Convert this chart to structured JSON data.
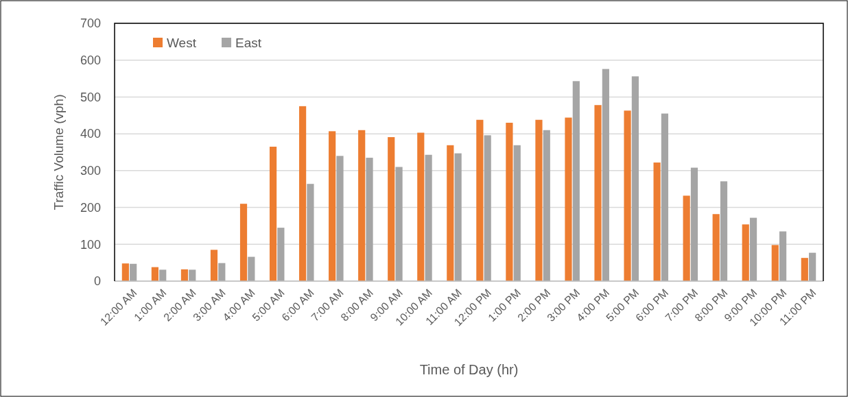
{
  "chart_data": {
    "type": "bar",
    "xlabel": "Time of Day (hr)",
    "ylabel": "Traffic Volume (vph)",
    "categories": [
      "12:00 AM",
      "1:00 AM",
      "2:00 AM",
      "3:00 AM",
      "4:00 AM",
      "5:00 AM",
      "6:00 AM",
      "7:00 AM",
      "8:00 AM",
      "9:00 AM",
      "10:00 AM",
      "11:00 AM",
      "12:00 PM",
      "1:00 PM",
      "2:00 PM",
      "3:00 PM",
      "4:00 PM",
      "5:00 PM",
      "6:00 PM",
      "7:00 PM",
      "8:00 PM",
      "9:00 PM",
      "10:00 PM",
      "11:00 PM"
    ],
    "series": [
      {
        "name": "West",
        "color": "#ed7d31",
        "values": [
          48,
          38,
          32,
          85,
          210,
          365,
          475,
          407,
          410,
          391,
          403,
          369,
          438,
          430,
          438,
          444,
          478,
          463,
          322,
          232,
          182,
          154,
          98,
          63
        ]
      },
      {
        "name": "East",
        "color": "#a5a5a5",
        "values": [
          47,
          31,
          31,
          49,
          66,
          145,
          264,
          340,
          335,
          310,
          343,
          347,
          396,
          369,
          410,
          543,
          576,
          556,
          455,
          308,
          271,
          172,
          135,
          77
        ]
      }
    ],
    "ylim": [
      0,
      700
    ],
    "yticks": [
      0,
      100,
      200,
      300,
      400,
      500,
      600,
      700
    ],
    "grid": "y",
    "legend": "top left"
  }
}
